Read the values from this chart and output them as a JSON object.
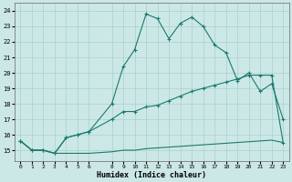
{
  "xlabel": "Humidex (Indice chaleur)",
  "bg_color": "#cce8e6",
  "grid_color": "#aad0cc",
  "line_color": "#1a7a6e",
  "xlim": [
    -0.5,
    23.5
  ],
  "ylim": [
    14.3,
    24.5
  ],
  "xticks": [
    0,
    1,
    2,
    3,
    4,
    5,
    6,
    8,
    9,
    10,
    11,
    12,
    13,
    14,
    15,
    16,
    17,
    18,
    19,
    20,
    21,
    22,
    23
  ],
  "yticks": [
    15,
    16,
    17,
    18,
    19,
    20,
    21,
    22,
    23,
    24
  ],
  "line_bottom_x": [
    0,
    1,
    2,
    3,
    4,
    5,
    6,
    8,
    9,
    10,
    11,
    12,
    13,
    14,
    15,
    16,
    17,
    18,
    19,
    20,
    21,
    22,
    23
  ],
  "line_bottom_y": [
    15.6,
    15.0,
    15.0,
    14.8,
    14.8,
    14.8,
    14.8,
    14.9,
    15.0,
    15.0,
    15.1,
    15.15,
    15.2,
    15.25,
    15.3,
    15.35,
    15.4,
    15.45,
    15.5,
    15.55,
    15.6,
    15.65,
    15.5
  ],
  "line_diag_x": [
    0,
    1,
    2,
    3,
    4,
    5,
    6,
    8,
    9,
    10,
    11,
    12,
    13,
    14,
    15,
    16,
    17,
    18,
    19,
    20,
    21,
    22,
    23
  ],
  "line_diag_y": [
    15.6,
    15.0,
    15.0,
    14.8,
    15.8,
    16.0,
    16.2,
    17.0,
    17.5,
    17.5,
    17.8,
    17.9,
    18.2,
    18.5,
    18.8,
    19.0,
    19.2,
    19.4,
    19.6,
    19.85,
    19.85,
    19.85,
    15.5
  ],
  "line_curve_x": [
    0,
    1,
    2,
    3,
    4,
    5,
    6,
    8,
    9,
    10,
    11,
    12,
    13,
    14,
    15,
    16,
    17,
    18,
    19,
    20,
    21,
    22,
    23
  ],
  "line_curve_y": [
    15.6,
    15.0,
    15.0,
    14.8,
    15.8,
    16.0,
    16.2,
    18.0,
    20.4,
    21.5,
    23.8,
    23.5,
    22.2,
    23.2,
    23.6,
    23.0,
    21.8,
    21.3,
    19.5,
    20.0,
    18.8,
    19.3,
    17.0
  ]
}
